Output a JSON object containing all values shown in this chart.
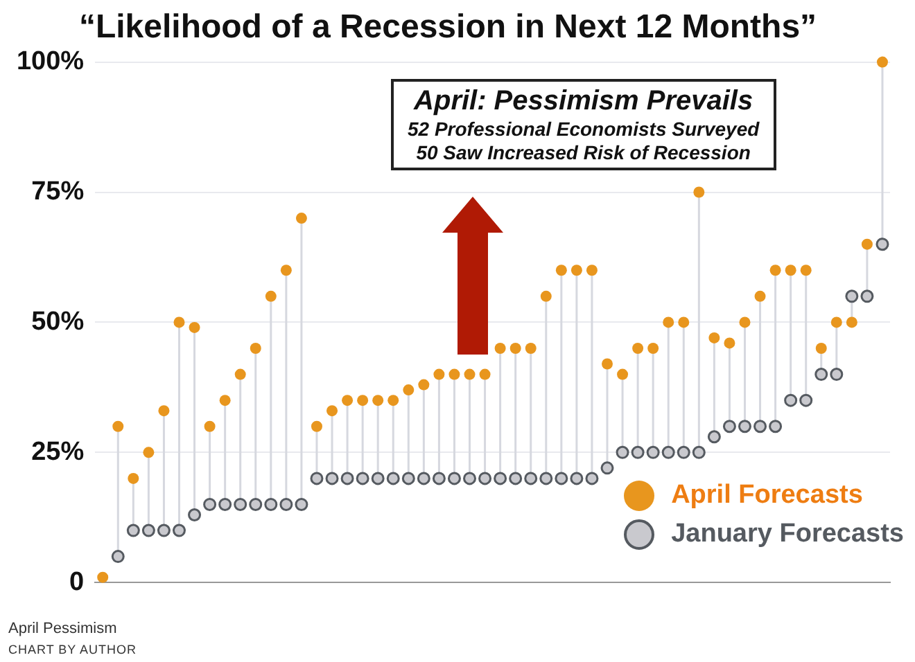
{
  "chart_data": {
    "type": "scatter",
    "title": "“Likelihood of a Recession in Next 12 Months”",
    "categories": [
      null,
      null,
      null,
      null,
      null,
      null,
      null,
      null,
      null,
      null,
      null,
      null,
      null,
      null,
      null,
      null,
      null,
      null,
      null,
      null,
      null,
      null,
      null,
      null,
      null,
      null,
      null,
      null,
      null,
      null,
      null,
      null,
      null,
      null,
      null,
      null,
      null,
      null,
      null,
      null,
      null,
      null,
      null,
      null,
      null,
      null,
      null,
      null,
      null,
      null,
      null,
      null
    ],
    "series": [
      {
        "name": "April Forecasts",
        "color": "#e8961e",
        "values": [
          1,
          30,
          20,
          25,
          33,
          50,
          49,
          30,
          35,
          40,
          45,
          55,
          60,
          70,
          30,
          33,
          35,
          35,
          35,
          35,
          37,
          38,
          40,
          40,
          40,
          40,
          45,
          45,
          45,
          55,
          60,
          60,
          60,
          42,
          40,
          45,
          45,
          50,
          50,
          75,
          47,
          46,
          50,
          55,
          60,
          60,
          60,
          45,
          50,
          50,
          65,
          100
        ]
      },
      {
        "name": "January Forecasts",
        "color": "#c9c9ce",
        "values": [
          null,
          5,
          10,
          10,
          10,
          10,
          13,
          15,
          15,
          15,
          15,
          15,
          15,
          15,
          20,
          20,
          20,
          20,
          20,
          20,
          20,
          20,
          20,
          20,
          20,
          20,
          20,
          20,
          20,
          20,
          20,
          20,
          20,
          22,
          25,
          25,
          25,
          25,
          25,
          25,
          28,
          30,
          30,
          30,
          30,
          35,
          35,
          40,
          40,
          55,
          55,
          65
        ]
      }
    ],
    "ylim": [
      0,
      100
    ],
    "yticks": [
      {
        "value": 0,
        "label": "0"
      },
      {
        "value": 25,
        "label": "25%"
      },
      {
        "value": 50,
        "label": "50%"
      },
      {
        "value": 75,
        "label": "75%"
      },
      {
        "value": 100,
        "label": "100%"
      }
    ],
    "grid": "y",
    "tick_labels": "y",
    "legend": "bottom right",
    "marker": "circle",
    "annotations": [
      "April: Pessimism Prevails\n52 Professional Economists Surveyed\n50 Saw Increased Risk of Recession",
      "April Pessimism",
      "CHART BY AUTHOR"
    ]
  }
}
